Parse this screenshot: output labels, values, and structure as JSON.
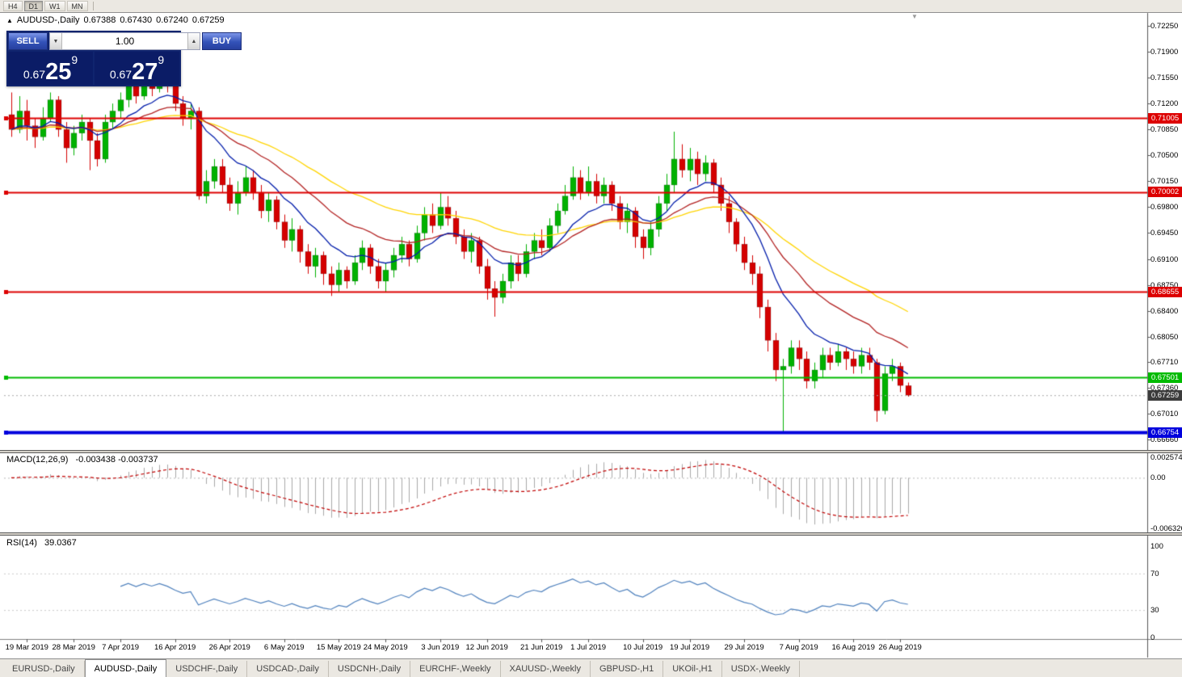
{
  "toolbar": {
    "timeframes": [
      "H4",
      "D1",
      "W1",
      "MN"
    ]
  },
  "chart_header": {
    "icon": "▲",
    "symbol": "AUDUSD-,Daily",
    "open": "0.67388",
    "high": "0.67430",
    "low": "0.67240",
    "close": "0.67259"
  },
  "trade_panel": {
    "sell_label": "SELL",
    "buy_label": "BUY",
    "volume": "1.00",
    "spin_down": "▼",
    "spin_up": "▲",
    "sell_price": {
      "base": "0.67",
      "big": "25",
      "sup": "9"
    },
    "buy_price": {
      "base": "0.67",
      "big": "27",
      "sup": "9"
    }
  },
  "price_scale": {
    "labels": [
      "0.72250",
      "0.71900",
      "0.71550",
      "0.71200",
      "0.70850",
      "0.70500",
      "0.70150",
      "0.69800",
      "0.69450",
      "0.69100",
      "0.68750",
      "0.68400",
      "0.68050",
      "0.67710",
      "0.67360",
      "0.67010",
      "0.66660"
    ]
  },
  "levels": {
    "hlines": [
      {
        "label": "0.71005",
        "value": 0.71005,
        "color": "#dd0000",
        "thickness": 2
      },
      {
        "label": "0.70002",
        "value": 0.70002,
        "color": "#dd0000",
        "thickness": 2
      },
      {
        "label": "0.68655",
        "value": 0.68655,
        "color": "#dd0000",
        "thickness": 2
      },
      {
        "label": "0.67501",
        "value": 0.67501,
        "color": "#00bb00",
        "thickness": 2
      },
      {
        "label": "0.66754",
        "value": 0.66754,
        "color": "#0000dd",
        "thickness": 4
      }
    ],
    "current": {
      "label": "0.67259",
      "value": 0.67259,
      "badge_color": "#3c3c3c",
      "line_color": "#aaaaaa"
    }
  },
  "macd_panel": {
    "title": "MACD(12,26,9)",
    "values": "-0.003438 -0.003737",
    "scale": [
      {
        "label": "0.002574",
        "value": 0.002574
      },
      {
        "label": "0.00",
        "value": 0
      },
      {
        "label": "-0.006326",
        "value": -0.006326
      }
    ]
  },
  "rsi_panel": {
    "title": "RSI(14)",
    "value": "39.0367",
    "scale": [
      {
        "label": "100",
        "value": 100
      },
      {
        "label": "70",
        "value": 70
      },
      {
        "label": "30",
        "value": 30
      },
      {
        "label": "0",
        "value": 0
      }
    ],
    "levels": [
      70,
      30
    ]
  },
  "x_axis": {
    "ticks": [
      {
        "index": 2,
        "label": "19 Mar 2019"
      },
      {
        "index": 8,
        "label": "28 Mar 2019"
      },
      {
        "index": 14,
        "label": "7 Apr 2019"
      },
      {
        "index": 21,
        "label": "16 Apr 2019"
      },
      {
        "index": 28,
        "label": "26 Apr 2019"
      },
      {
        "index": 35,
        "label": "6 May 2019"
      },
      {
        "index": 42,
        "label": "15 May 2019"
      },
      {
        "index": 48,
        "label": "24 May 2019"
      },
      {
        "index": 55,
        "label": "3 Jun 2019"
      },
      {
        "index": 61,
        "label": "12 Jun 2019"
      },
      {
        "index": 68,
        "label": "21 Jun 2019"
      },
      {
        "index": 74,
        "label": "1 Jul 2019"
      },
      {
        "index": 81,
        "label": "10 Jul 2019"
      },
      {
        "index": 87,
        "label": "19 Jul 2019"
      },
      {
        "index": 94,
        "label": "29 Jul 2019"
      },
      {
        "index": 101,
        "label": "7 Aug 2019"
      },
      {
        "index": 108,
        "label": "16 Aug 2019"
      },
      {
        "index": 114,
        "label": "26 Aug 2019"
      }
    ]
  },
  "bottom_tabs": {
    "items": [
      {
        "label": "EURUSD-,Daily",
        "active": false
      },
      {
        "label": "AUDUSD-,Daily",
        "active": true
      },
      {
        "label": "USDCHF-,Daily",
        "active": false
      },
      {
        "label": "USDCAD-,Daily",
        "active": false
      },
      {
        "label": "USDCNH-,Daily",
        "active": false
      },
      {
        "label": "EURCHF-,Weekly",
        "active": false
      },
      {
        "label": "XAUUSD-,Weekly",
        "active": false
      },
      {
        "label": "GBPUSD-,H1",
        "active": false
      },
      {
        "label": "UKOil-,H1",
        "active": false
      },
      {
        "label": "USDX-,Weekly",
        "active": false
      }
    ]
  },
  "chart_data": {
    "type": "candlestick",
    "symbol": "AUDUSD",
    "timeframe": "Daily",
    "y_range": [
      0.6666,
      0.7225
    ],
    "up_color": "#00b100",
    "down_color": "#d40000",
    "moving_averages": [
      {
        "name": "ma-slow-yellow",
        "period": 40,
        "color": "#ffd400"
      },
      {
        "name": "ma-mid-red",
        "period": 21,
        "color": "#b22222"
      },
      {
        "name": "ma-fast-blue",
        "period": 10,
        "color": "#001caa"
      }
    ],
    "macd": {
      "fast": 12,
      "slow": 26,
      "signal": 9,
      "range": [
        -0.006326,
        0.002574
      ],
      "histogram_color": "#a8a8a8",
      "signal_color": "#c00000"
    },
    "rsi": {
      "period": 14,
      "range": [
        0,
        100
      ],
      "color": "#4f81bd"
    },
    "candles": [
      [
        0.7105,
        0.7135,
        0.7075,
        0.7085
      ],
      [
        0.7085,
        0.713,
        0.708,
        0.711
      ],
      [
        0.711,
        0.7125,
        0.707,
        0.709
      ],
      [
        0.709,
        0.71,
        0.706,
        0.7075
      ],
      [
        0.7075,
        0.7115,
        0.707,
        0.71
      ],
      [
        0.71,
        0.7135,
        0.7095,
        0.7125
      ],
      [
        0.7125,
        0.713,
        0.7075,
        0.7085
      ],
      [
        0.7085,
        0.7095,
        0.704,
        0.706
      ],
      [
        0.706,
        0.709,
        0.705,
        0.708
      ],
      [
        0.708,
        0.7105,
        0.707,
        0.7095
      ],
      [
        0.7095,
        0.71,
        0.703,
        0.707
      ],
      [
        0.707,
        0.708,
        0.7035,
        0.7045
      ],
      [
        0.7045,
        0.7105,
        0.704,
        0.7095
      ],
      [
        0.7095,
        0.712,
        0.7085,
        0.711
      ],
      [
        0.711,
        0.7135,
        0.71,
        0.7125
      ],
      [
        0.7125,
        0.716,
        0.7115,
        0.715
      ],
      [
        0.715,
        0.7165,
        0.712,
        0.713
      ],
      [
        0.713,
        0.717,
        0.7125,
        0.7155
      ],
      [
        0.7155,
        0.7165,
        0.713,
        0.714
      ],
      [
        0.714,
        0.7175,
        0.7135,
        0.716
      ],
      [
        0.716,
        0.717,
        0.7135,
        0.7145
      ],
      [
        0.7145,
        0.7155,
        0.711,
        0.712
      ],
      [
        0.712,
        0.713,
        0.709,
        0.71
      ],
      [
        0.71,
        0.712,
        0.7085,
        0.711
      ],
      [
        0.711,
        0.7115,
        0.699,
        0.6995
      ],
      [
        0.6995,
        0.703,
        0.6985,
        0.7015
      ],
      [
        0.7015,
        0.7045,
        0.7005,
        0.7035
      ],
      [
        0.7035,
        0.7045,
        0.7,
        0.701
      ],
      [
        0.701,
        0.702,
        0.6975,
        0.6985
      ],
      [
        0.6985,
        0.7015,
        0.697,
        0.7
      ],
      [
        0.7,
        0.7035,
        0.6995,
        0.702
      ],
      [
        0.702,
        0.703,
        0.699,
        0.7
      ],
      [
        0.7,
        0.701,
        0.6965,
        0.6975
      ],
      [
        0.6975,
        0.7,
        0.696,
        0.699
      ],
      [
        0.699,
        0.6995,
        0.695,
        0.696
      ],
      [
        0.696,
        0.697,
        0.6925,
        0.6935
      ],
      [
        0.6935,
        0.6965,
        0.692,
        0.695
      ],
      [
        0.695,
        0.6955,
        0.6905,
        0.692
      ],
      [
        0.692,
        0.693,
        0.689,
        0.69
      ],
      [
        0.69,
        0.6925,
        0.6885,
        0.6915
      ],
      [
        0.6915,
        0.692,
        0.6875,
        0.689
      ],
      [
        0.689,
        0.69,
        0.686,
        0.6875
      ],
      [
        0.6875,
        0.6905,
        0.6865,
        0.6895
      ],
      [
        0.6895,
        0.69,
        0.687,
        0.688
      ],
      [
        0.688,
        0.6915,
        0.6875,
        0.6905
      ],
      [
        0.6905,
        0.6935,
        0.6895,
        0.6925
      ],
      [
        0.6925,
        0.693,
        0.689,
        0.69
      ],
      [
        0.69,
        0.691,
        0.687,
        0.688
      ],
      [
        0.688,
        0.6905,
        0.6865,
        0.6895
      ],
      [
        0.6895,
        0.6925,
        0.6885,
        0.6915
      ],
      [
        0.6915,
        0.694,
        0.6905,
        0.693
      ],
      [
        0.693,
        0.6935,
        0.69,
        0.691
      ],
      [
        0.691,
        0.6955,
        0.6905,
        0.6945
      ],
      [
        0.6945,
        0.698,
        0.6935,
        0.697
      ],
      [
        0.697,
        0.6985,
        0.6945,
        0.6955
      ],
      [
        0.6955,
        0.7,
        0.695,
        0.698
      ],
      [
        0.698,
        0.6995,
        0.6955,
        0.6965
      ],
      [
        0.6965,
        0.6975,
        0.693,
        0.694
      ],
      [
        0.694,
        0.695,
        0.691,
        0.692
      ],
      [
        0.692,
        0.6945,
        0.6905,
        0.6935
      ],
      [
        0.6935,
        0.694,
        0.689,
        0.69
      ],
      [
        0.69,
        0.691,
        0.6855,
        0.687
      ],
      [
        0.687,
        0.688,
        0.6832,
        0.6858
      ],
      [
        0.6858,
        0.689,
        0.685,
        0.688
      ],
      [
        0.688,
        0.6915,
        0.687,
        0.6905
      ],
      [
        0.6905,
        0.6915,
        0.688,
        0.689
      ],
      [
        0.689,
        0.693,
        0.6885,
        0.692
      ],
      [
        0.692,
        0.6945,
        0.691,
        0.6935
      ],
      [
        0.6935,
        0.695,
        0.6915,
        0.6925
      ],
      [
        0.6925,
        0.6965,
        0.692,
        0.6955
      ],
      [
        0.6955,
        0.6985,
        0.6945,
        0.6975
      ],
      [
        0.6975,
        0.701,
        0.697,
        0.6995
      ],
      [
        0.6995,
        0.7035,
        0.699,
        0.702
      ],
      [
        0.702,
        0.703,
        0.699,
        0.7
      ],
      [
        0.7,
        0.7035,
        0.6995,
        0.7015
      ],
      [
        0.7015,
        0.7025,
        0.6985,
        0.6995
      ],
      [
        0.6995,
        0.702,
        0.6985,
        0.701
      ],
      [
        0.701,
        0.7015,
        0.6975,
        0.6985
      ],
      [
        0.6985,
        0.6995,
        0.695,
        0.696
      ],
      [
        0.696,
        0.6985,
        0.6945,
        0.6975
      ],
      [
        0.6975,
        0.698,
        0.6925,
        0.694
      ],
      [
        0.694,
        0.695,
        0.691,
        0.6925
      ],
      [
        0.6925,
        0.696,
        0.6915,
        0.695
      ],
      [
        0.695,
        0.6995,
        0.694,
        0.6985
      ],
      [
        0.6985,
        0.7025,
        0.6975,
        0.701
      ],
      [
        0.701,
        0.7082,
        0.7,
        0.7045
      ],
      [
        0.7045,
        0.7065,
        0.702,
        0.703
      ],
      [
        0.703,
        0.706,
        0.7015,
        0.7045
      ],
      [
        0.7045,
        0.7055,
        0.701,
        0.7025
      ],
      [
        0.7025,
        0.705,
        0.7015,
        0.704
      ],
      [
        0.704,
        0.7045,
        0.7,
        0.701
      ],
      [
        0.701,
        0.702,
        0.6975,
        0.6985
      ],
      [
        0.6985,
        0.6995,
        0.6945,
        0.696
      ],
      [
        0.696,
        0.6965,
        0.692,
        0.693
      ],
      [
        0.693,
        0.694,
        0.6895,
        0.6905
      ],
      [
        0.6905,
        0.6915,
        0.6875,
        0.689
      ],
      [
        0.689,
        0.69,
        0.683,
        0.6845
      ],
      [
        0.6845,
        0.6855,
        0.6785,
        0.68
      ],
      [
        0.68,
        0.681,
        0.6745,
        0.676
      ],
      [
        0.676,
        0.6775,
        0.6677,
        0.6765
      ],
      [
        0.6765,
        0.68,
        0.6755,
        0.679
      ],
      [
        0.679,
        0.68,
        0.676,
        0.6775
      ],
      [
        0.6775,
        0.6785,
        0.6735,
        0.6745
      ],
      [
        0.6745,
        0.677,
        0.6735,
        0.676
      ],
      [
        0.676,
        0.679,
        0.675,
        0.678
      ],
      [
        0.678,
        0.679,
        0.676,
        0.677
      ],
      [
        0.677,
        0.6795,
        0.6765,
        0.6785
      ],
      [
        0.6785,
        0.679,
        0.676,
        0.6775
      ],
      [
        0.6775,
        0.6785,
        0.6755,
        0.6765
      ],
      [
        0.6765,
        0.679,
        0.6755,
        0.678
      ],
      [
        0.678,
        0.679,
        0.676,
        0.677
      ],
      [
        0.677,
        0.6775,
        0.669,
        0.6705
      ],
      [
        0.6705,
        0.6765,
        0.67,
        0.6755
      ],
      [
        0.6755,
        0.6775,
        0.6745,
        0.6765
      ],
      [
        0.6765,
        0.677,
        0.673,
        0.6739
      ],
      [
        0.67388,
        0.6743,
        0.6724,
        0.67259
      ]
    ]
  }
}
